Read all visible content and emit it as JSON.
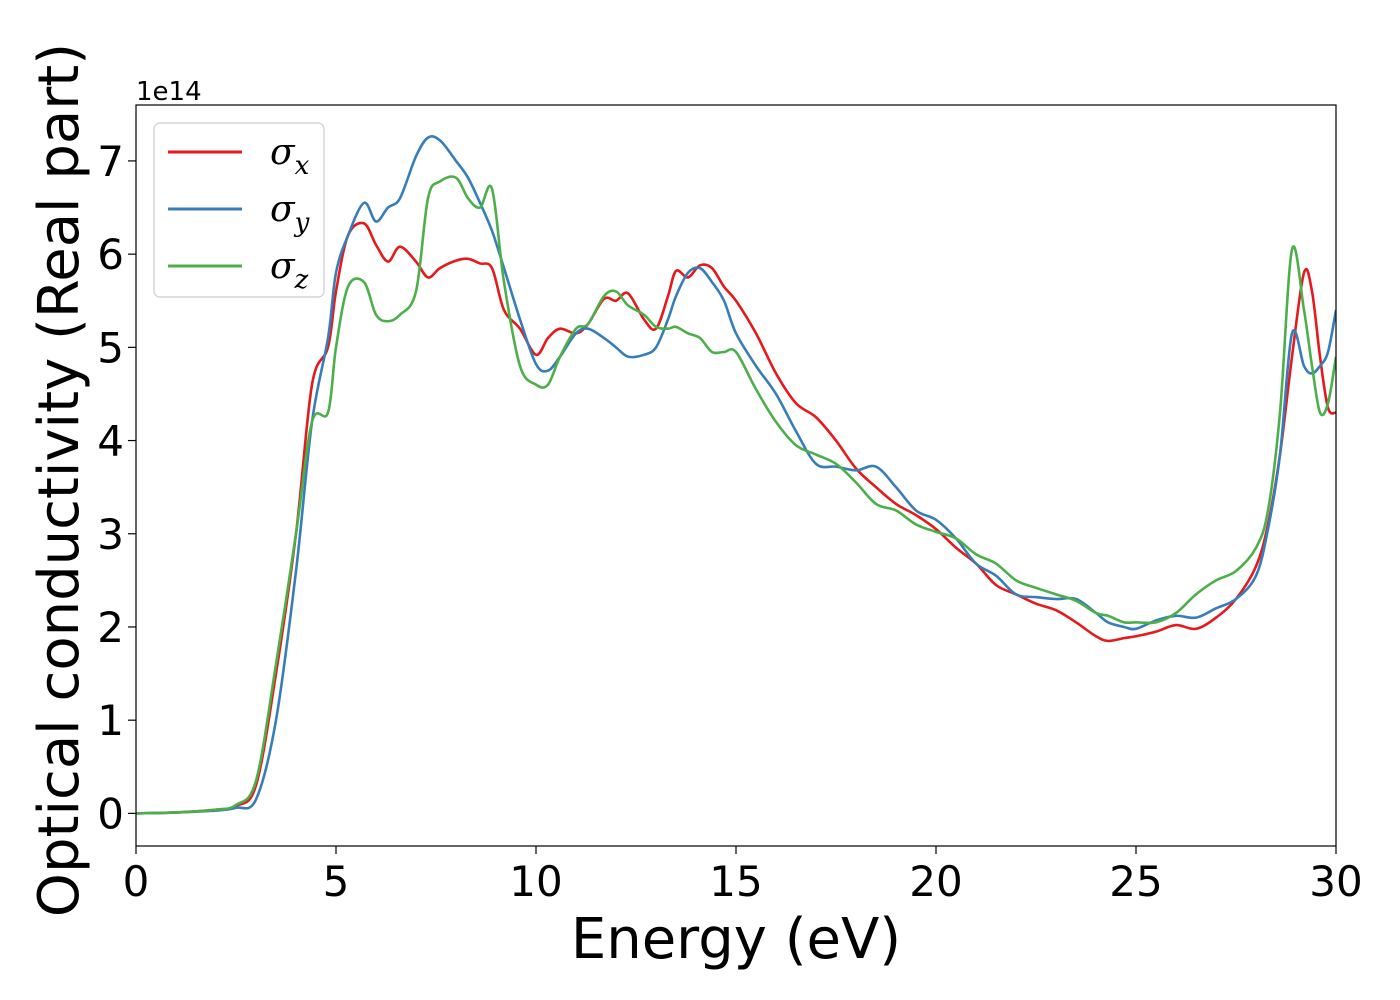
{
  "chart_data": {
    "type": "line",
    "xlabel": "Energy (eV)",
    "ylabel": "Optical conductivity (Real part)",
    "y_offset_label": "1e14",
    "xlim": [
      0,
      30
    ],
    "ylim": [
      -0.35,
      7.6
    ],
    "xticks": [
      "0",
      "5",
      "10",
      "15",
      "20",
      "25",
      "30"
    ],
    "yticks": [
      "0",
      "1",
      "2",
      "3",
      "4",
      "5",
      "6",
      "7"
    ],
    "grid": false,
    "legend_position": "upper-left",
    "series": [
      {
        "name": "σx",
        "sub": "x",
        "color": "#e41a1c",
        "x": [
          0,
          1,
          2,
          2.5,
          3,
          3.5,
          4,
          4.4,
          4.8,
          5,
          5.3,
          5.7,
          6,
          6.3,
          6.6,
          7,
          7.3,
          7.6,
          8,
          8.3,
          8.6,
          8.9,
          9.2,
          9.6,
          10,
          10.3,
          10.6,
          11,
          11.3,
          11.7,
          12,
          12.3,
          12.7,
          13,
          13.3,
          13.5,
          13.8,
          14.1,
          14.4,
          14.7,
          15,
          15.5,
          16,
          16.5,
          17,
          17.5,
          18,
          18.5,
          19,
          19.5,
          20,
          20.5,
          21,
          21.5,
          22,
          22.5,
          23,
          23.5,
          24,
          24.3,
          24.7,
          25,
          25.5,
          26,
          26.5,
          27,
          27.5,
          28,
          28.3,
          28.6,
          28.9,
          29.2,
          29.4,
          29.6,
          29.8,
          30
        ],
        "y": [
          0,
          0.01,
          0.04,
          0.08,
          0.3,
          1.5,
          3.0,
          4.6,
          5.0,
          5.6,
          6.2,
          6.33,
          6.1,
          5.92,
          6.08,
          5.92,
          5.75,
          5.85,
          5.93,
          5.95,
          5.9,
          5.85,
          5.4,
          5.2,
          4.92,
          5.1,
          5.2,
          5.15,
          5.25,
          5.52,
          5.5,
          5.58,
          5.3,
          5.2,
          5.55,
          5.82,
          5.75,
          5.88,
          5.85,
          5.65,
          5.5,
          5.15,
          4.72,
          4.4,
          4.25,
          4.0,
          3.7,
          3.5,
          3.32,
          3.2,
          3.05,
          2.85,
          2.68,
          2.45,
          2.35,
          2.25,
          2.18,
          2.05,
          1.9,
          1.85,
          1.88,
          1.9,
          1.95,
          2.02,
          1.98,
          2.1,
          2.3,
          2.65,
          3.1,
          3.85,
          4.9,
          5.8,
          5.6,
          4.9,
          4.35,
          4.3
        ]
      },
      {
        "name": "σy",
        "sub": "y",
        "color": "#377eb8",
        "x": [
          0,
          1,
          2,
          2.5,
          3,
          3.5,
          4,
          4.4,
          4.8,
          5,
          5.3,
          5.7,
          6,
          6.3,
          6.6,
          7,
          7.3,
          7.6,
          8,
          8.3,
          8.6,
          8.9,
          9.2,
          9.6,
          10,
          10.3,
          10.6,
          11,
          11.3,
          11.7,
          12,
          12.3,
          12.7,
          13,
          13.3,
          13.5,
          13.8,
          14.1,
          14.4,
          14.7,
          15,
          15.5,
          16,
          16.5,
          17,
          17.5,
          18,
          18.5,
          19,
          19.5,
          20,
          20.5,
          21,
          21.5,
          22,
          22.5,
          23,
          23.5,
          24,
          24.3,
          24.7,
          25,
          25.5,
          26,
          26.5,
          27,
          27.5,
          28,
          28.3,
          28.6,
          28.9,
          29.2,
          29.4,
          29.6,
          29.8,
          30
        ],
        "y": [
          0,
          0.01,
          0.03,
          0.06,
          0.15,
          1.0,
          2.6,
          4.2,
          5.1,
          5.8,
          6.2,
          6.55,
          6.35,
          6.5,
          6.6,
          7.05,
          7.25,
          7.22,
          7.0,
          6.82,
          6.55,
          6.25,
          5.85,
          5.3,
          4.82,
          4.75,
          4.9,
          5.15,
          5.2,
          5.1,
          5.0,
          4.9,
          4.92,
          5.0,
          5.3,
          5.55,
          5.8,
          5.85,
          5.7,
          5.5,
          5.15,
          4.8,
          4.5,
          4.1,
          3.75,
          3.72,
          3.68,
          3.72,
          3.5,
          3.25,
          3.15,
          2.95,
          2.68,
          2.55,
          2.35,
          2.32,
          2.3,
          2.3,
          2.15,
          2.05,
          2.0,
          1.98,
          2.07,
          2.12,
          2.1,
          2.2,
          2.3,
          2.55,
          3.05,
          3.85,
          5.15,
          4.8,
          4.72,
          4.8,
          4.95,
          5.4
        ]
      },
      {
        "name": "σz",
        "sub": "z",
        "color": "#4daf4a",
        "x": [
          0,
          1,
          2,
          2.5,
          3,
          3.5,
          4,
          4.4,
          4.8,
          5,
          5.3,
          5.7,
          6,
          6.3,
          6.6,
          7,
          7.3,
          7.6,
          8,
          8.3,
          8.6,
          8.9,
          9.2,
          9.6,
          10,
          10.3,
          10.6,
          11,
          11.3,
          11.7,
          12,
          12.3,
          12.7,
          13,
          13.3,
          13.5,
          13.8,
          14.1,
          14.4,
          14.7,
          15,
          15.5,
          16,
          16.5,
          17,
          17.5,
          18,
          18.5,
          19,
          19.5,
          20,
          20.5,
          21,
          21.5,
          22,
          22.5,
          23,
          23.5,
          24,
          24.3,
          24.7,
          25,
          25.5,
          26,
          26.5,
          27,
          27.5,
          28,
          28.3,
          28.6,
          28.9,
          29.2,
          29.4,
          29.6,
          29.8,
          30
        ],
        "y": [
          0,
          0.01,
          0.04,
          0.09,
          0.35,
          1.6,
          3.0,
          4.2,
          4.3,
          5.0,
          5.65,
          5.7,
          5.35,
          5.28,
          5.35,
          5.6,
          6.6,
          6.78,
          6.82,
          6.6,
          6.5,
          6.7,
          5.7,
          4.8,
          4.6,
          4.6,
          4.9,
          5.2,
          5.25,
          5.55,
          5.6,
          5.45,
          5.35,
          5.22,
          5.2,
          5.22,
          5.15,
          5.1,
          4.95,
          4.95,
          4.95,
          4.55,
          4.2,
          3.95,
          3.85,
          3.75,
          3.55,
          3.32,
          3.25,
          3.1,
          3.02,
          2.95,
          2.78,
          2.68,
          2.5,
          2.42,
          2.35,
          2.28,
          2.15,
          2.12,
          2.05,
          2.05,
          2.05,
          2.15,
          2.35,
          2.5,
          2.6,
          2.85,
          3.25,
          4.3,
          6.05,
          5.4,
          4.8,
          4.3,
          4.4,
          4.9
        ]
      }
    ]
  }
}
